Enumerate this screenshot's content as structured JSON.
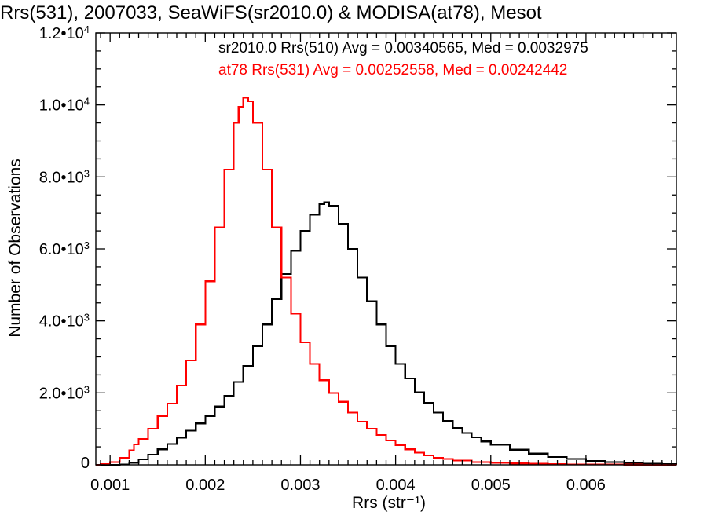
{
  "chart_data": {
    "type": "line",
    "title": "Rrs(531), 2007033, SeaWiFS(sr2010.0) & MODISA(at78), Mesot",
    "xlabel": "Rrs (str⁻¹)",
    "ylabel": "Number of Observations",
    "xlim": [
      0.00085,
      0.00695
    ],
    "ylim": [
      0,
      12000
    ],
    "x_ticks": [
      0.001,
      0.002,
      0.003,
      0.004,
      0.005,
      0.006
    ],
    "x_tick_labels": [
      "0.001",
      "0.002",
      "0.003",
      "0.004",
      "0.005",
      "0.006"
    ],
    "y_ticks": [
      0,
      2000,
      4000,
      6000,
      8000,
      10000,
      12000
    ],
    "y_tick_labels": [
      {
        "mantissa": "0",
        "exponent": ""
      },
      {
        "mantissa": "2.0•10",
        "exponent": "3"
      },
      {
        "mantissa": "4.0•10",
        "exponent": "3"
      },
      {
        "mantissa": "6.0•10",
        "exponent": "3"
      },
      {
        "mantissa": "8.0•10",
        "exponent": "3"
      },
      {
        "mantissa": "1.0•10",
        "exponent": "4"
      },
      {
        "mantissa": "1.2•10",
        "exponent": "4"
      }
    ],
    "grid": false,
    "legend_position": "top-right",
    "series": [
      {
        "name": "sr2010.0 Rrs(510)",
        "label": "sr2010.0 Rrs(510) Avg = 0.00340565, Med = 0.0032975",
        "color": "#000000",
        "step": true,
        "x": [
          0.00085,
          0.001,
          0.0011,
          0.0012,
          0.0013,
          0.0014,
          0.0015,
          0.0016,
          0.0017,
          0.0018,
          0.0019,
          0.002,
          0.0021,
          0.0022,
          0.0023,
          0.0024,
          0.0025,
          0.0026,
          0.0027,
          0.0028,
          0.0029,
          0.003,
          0.0031,
          0.0032,
          0.00325,
          0.0033,
          0.0034,
          0.0035,
          0.0036,
          0.0037,
          0.0038,
          0.0039,
          0.004,
          0.0041,
          0.0042,
          0.0043,
          0.0044,
          0.0045,
          0.0046,
          0.0047,
          0.0048,
          0.0049,
          0.005,
          0.0052,
          0.0054,
          0.0056,
          0.0058,
          0.006,
          0.0062,
          0.0064,
          0.0066,
          0.0068,
          0.00695
        ],
        "y": [
          0,
          0,
          10,
          60,
          150,
          280,
          430,
          580,
          750,
          950,
          1150,
          1350,
          1620,
          1920,
          2300,
          2750,
          3300,
          3900,
          4600,
          5300,
          5950,
          6500,
          6950,
          7250,
          7300,
          7200,
          6700,
          6000,
          5200,
          4550,
          3900,
          3300,
          2800,
          2400,
          2020,
          1720,
          1450,
          1220,
          1020,
          880,
          760,
          650,
          560,
          420,
          310,
          220,
          160,
          110,
          80,
          55,
          35,
          20,
          10
        ]
      },
      {
        "name": "at78 Rrs(531)",
        "label": "at78 Rrs(531) Avg = 0.00252558, Med = 0.00242442",
        "color": "#ff0000",
        "step": true,
        "x": [
          0.00085,
          0.0009,
          0.001,
          0.0011,
          0.0012,
          0.00125,
          0.0013,
          0.0014,
          0.0015,
          0.0016,
          0.0017,
          0.0018,
          0.0019,
          0.002,
          0.0021,
          0.0022,
          0.0023,
          0.00235,
          0.0024,
          0.00245,
          0.0025,
          0.0026,
          0.0027,
          0.0028,
          0.0029,
          0.003,
          0.0031,
          0.0032,
          0.0033,
          0.0034,
          0.0035,
          0.0036,
          0.0037,
          0.0038,
          0.0039,
          0.004,
          0.0041,
          0.0042,
          0.0043,
          0.0044,
          0.0045,
          0.0046,
          0.0048,
          0.005,
          0.0052,
          0.0054,
          0.0056,
          0.0058,
          0.006,
          0.0062,
          0.0064,
          0.0066,
          0.0068,
          0.00695
        ],
        "y": [
          0,
          20,
          80,
          200,
          400,
          570,
          720,
          1000,
          1350,
          1700,
          2200,
          2900,
          3900,
          5100,
          6600,
          8200,
          9500,
          9950,
          10200,
          10100,
          9500,
          8200,
          6600,
          5200,
          4200,
          3400,
          2800,
          2350,
          2000,
          1750,
          1450,
          1200,
          1000,
          830,
          680,
          550,
          430,
          340,
          260,
          200,
          160,
          120,
          80,
          55,
          38,
          28,
          20,
          15,
          10,
          7,
          5,
          3,
          2,
          1
        ]
      }
    ]
  }
}
